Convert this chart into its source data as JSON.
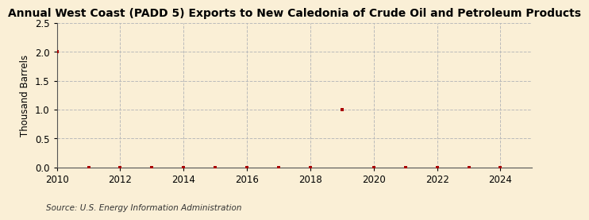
{
  "title": "Annual West Coast (PADD 5) Exports to New Caledonia of Crude Oil and Petroleum Products",
  "ylabel": "Thousand Barrels",
  "source": "Source: U.S. Energy Information Administration",
  "background_color": "#faefd6",
  "years": [
    2010,
    2011,
    2012,
    2013,
    2014,
    2015,
    2016,
    2017,
    2018,
    2019,
    2020,
    2021,
    2022,
    2023,
    2024
  ],
  "values": [
    2.0,
    0.0,
    0.0,
    0.0,
    0.0,
    0.0,
    0.0,
    0.0,
    0.0,
    1.0,
    0.0,
    0.0,
    0.0,
    0.0,
    0.0
  ],
  "xlim": [
    2010,
    2025
  ],
  "ylim": [
    0.0,
    2.5
  ],
  "yticks": [
    0.0,
    0.5,
    1.0,
    1.5,
    2.0,
    2.5
  ],
  "xticks": [
    2010,
    2012,
    2014,
    2016,
    2018,
    2020,
    2022,
    2024
  ],
  "marker_color": "#aa0000",
  "marker_size": 3.5,
  "zero_marker_size": 2.5,
  "grid_color": "#bbbbbb",
  "title_fontsize": 10,
  "axis_fontsize": 8.5,
  "source_fontsize": 7.5
}
